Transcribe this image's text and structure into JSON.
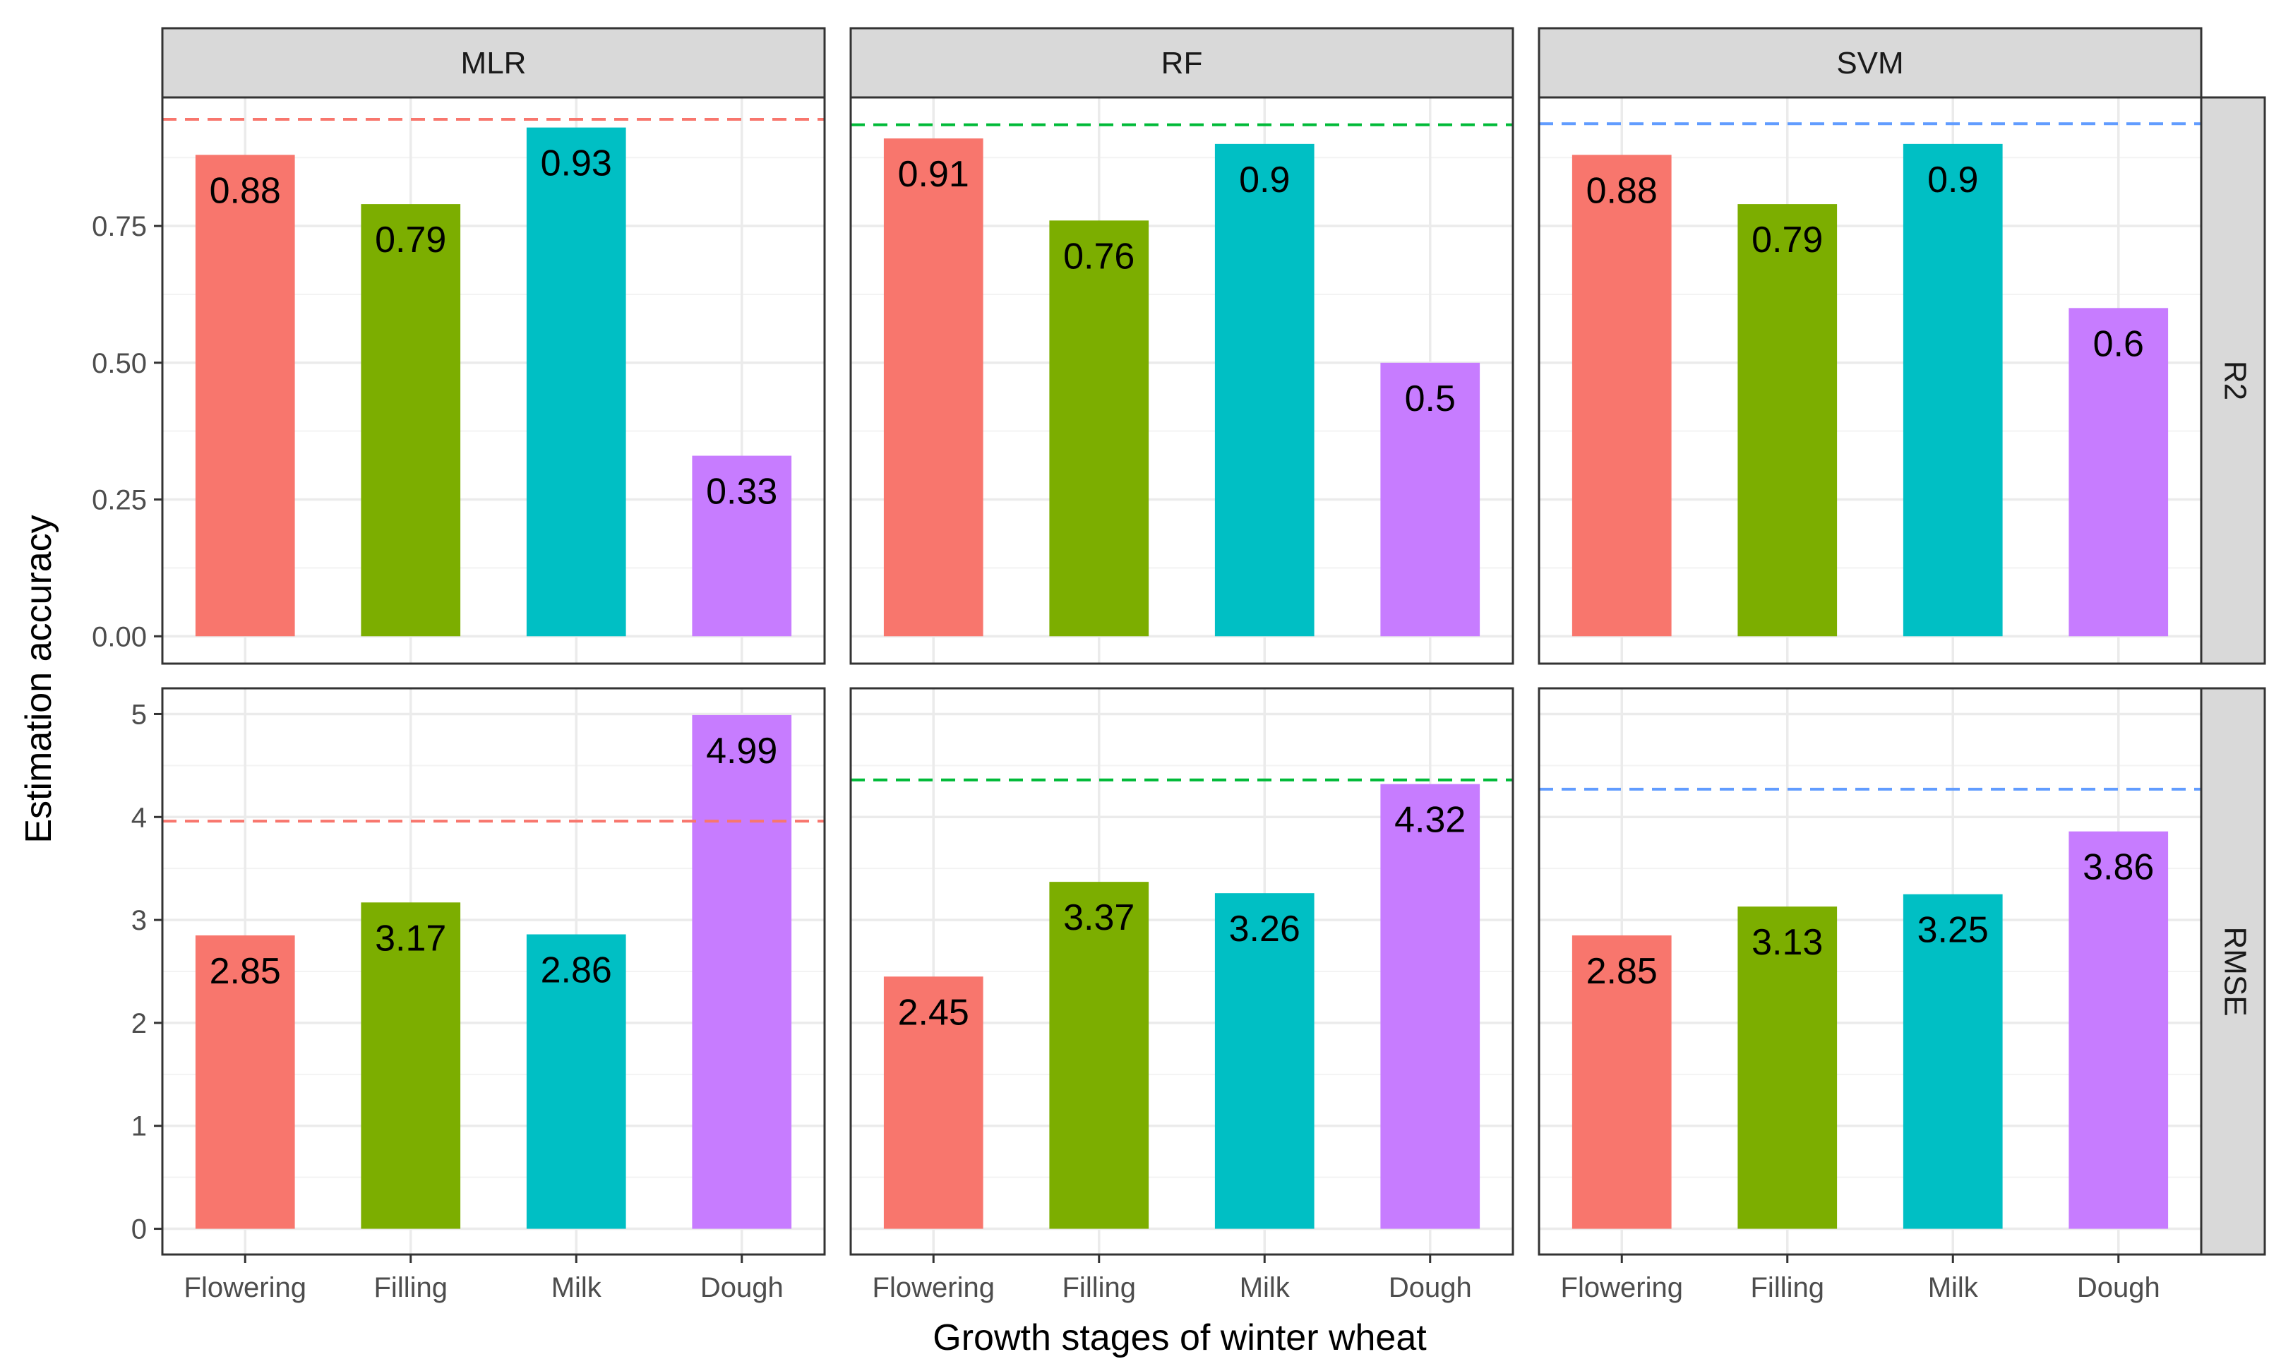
{
  "chart_data": {
    "type": "bar",
    "title": "",
    "xlabel": "Growth stages of winter wheat",
    "ylabel": "Estimation accuracy",
    "categories": [
      "Flowering",
      "Filling",
      "Milk",
      "Dough"
    ],
    "category_colors": [
      "#F8766D",
      "#7CAE00",
      "#00BFC4",
      "#C77CFF"
    ],
    "legend": "none",
    "grid": true,
    "facets_columns": [
      "MLR",
      "RF",
      "SVM"
    ],
    "facets_rows": [
      {
        "name": "R2",
        "ylim": [
          -0.05,
          0.985
        ],
        "ticks": [
          0.0,
          0.25,
          0.5,
          0.75
        ],
        "tick_labels": [
          "0.00",
          "0.25",
          "0.50",
          "0.75"
        ]
      },
      {
        "name": "RMSE",
        "ylim": [
          -0.25,
          5.25
        ],
        "ticks": [
          0,
          1,
          2,
          3,
          4,
          5
        ],
        "tick_labels": [
          "0",
          "1",
          "2",
          "3",
          "4",
          "5"
        ]
      }
    ],
    "reference_line_colors": {
      "MLR": "#F8766D",
      "RF": "#00BA38",
      "SVM": "#619CFF"
    },
    "panels": [
      {
        "model": "MLR",
        "metric": "R2",
        "values": [
          0.88,
          0.79,
          0.93,
          0.33
        ],
        "labels": [
          "0.88",
          "0.79",
          "0.93",
          "0.33"
        ],
        "reference": 0.945
      },
      {
        "model": "RF",
        "metric": "R2",
        "values": [
          0.91,
          0.76,
          0.9,
          0.5
        ],
        "labels": [
          "0.91",
          "0.76",
          "0.9",
          "0.5"
        ],
        "reference": 0.935
      },
      {
        "model": "SVM",
        "metric": "R2",
        "values": [
          0.88,
          0.79,
          0.9,
          0.6
        ],
        "labels": [
          "0.88",
          "0.79",
          "0.9",
          "0.6"
        ],
        "reference": 0.937
      },
      {
        "model": "MLR",
        "metric": "RMSE",
        "values": [
          2.85,
          3.17,
          2.86,
          4.99
        ],
        "labels": [
          "2.85",
          "3.17",
          "2.86",
          "4.99"
        ],
        "reference": 3.96
      },
      {
        "model": "RF",
        "metric": "RMSE",
        "values": [
          2.45,
          3.37,
          3.26,
          4.32
        ],
        "labels": [
          "2.45",
          "3.37",
          "3.26",
          "4.32"
        ],
        "reference": 4.36
      },
      {
        "model": "SVM",
        "metric": "RMSE",
        "values": [
          2.85,
          3.13,
          3.25,
          3.86
        ],
        "labels": [
          "2.85",
          "3.13",
          "3.25",
          "3.86"
        ],
        "reference": 4.27
      }
    ]
  }
}
